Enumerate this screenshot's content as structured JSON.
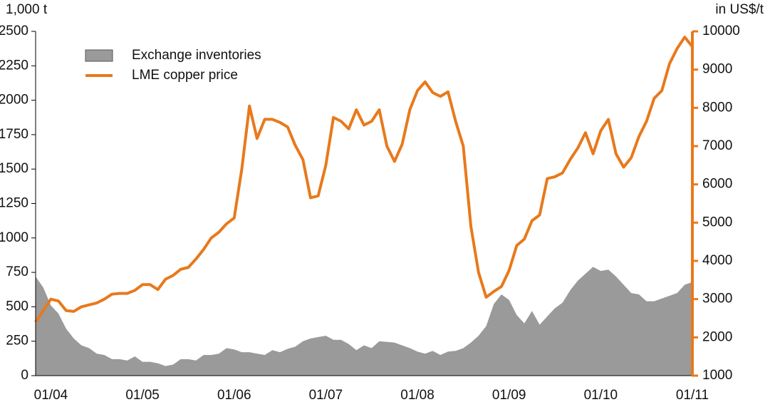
{
  "chart_data": {
    "type": "combo",
    "y_label": "1,000 t",
    "y2_label": "in US$/t",
    "categories": [
      null,
      null,
      "01/04",
      null,
      null,
      null,
      null,
      null,
      null,
      null,
      null,
      null,
      null,
      null,
      "01/05",
      null,
      null,
      null,
      null,
      null,
      null,
      null,
      null,
      null,
      null,
      null,
      "01/06",
      null,
      null,
      null,
      null,
      null,
      null,
      null,
      null,
      null,
      null,
      null,
      "01/07",
      null,
      null,
      null,
      null,
      null,
      null,
      null,
      null,
      null,
      null,
      null,
      "01/08",
      null,
      null,
      null,
      null,
      null,
      null,
      null,
      null,
      null,
      null,
      null,
      "01/09",
      null,
      null,
      null,
      null,
      null,
      null,
      null,
      null,
      null,
      null,
      null,
      "01/10",
      null,
      null,
      null,
      null,
      null,
      null,
      null,
      null,
      null,
      null,
      null,
      "01/11"
    ],
    "series": [
      {
        "name": "Exchange inventories",
        "type": "area",
        "color": "#9a9a9a",
        "values": [
          720,
          640,
          510,
          450,
          340,
          270,
          220,
          200,
          160,
          150,
          120,
          120,
          110,
          140,
          100,
          100,
          90,
          70,
          80,
          120,
          120,
          110,
          150,
          150,
          160,
          200,
          190,
          170,
          170,
          160,
          150,
          185,
          170,
          195,
          210,
          250,
          270,
          280,
          290,
          260,
          260,
          230,
          185,
          220,
          200,
          250,
          245,
          240,
          220,
          200,
          175,
          160,
          180,
          150,
          175,
          180,
          200,
          240,
          290,
          360,
          520,
          590,
          550,
          440,
          380,
          470,
          370,
          430,
          490,
          530,
          620,
          690,
          740,
          790,
          760,
          770,
          720,
          660,
          600,
          590,
          540,
          540,
          560,
          580,
          600,
          660,
          680
        ]
      },
      {
        "name": "LME copper price",
        "type": "line",
        "axis": "y2",
        "color": "#e8791c",
        "values": [
          2400,
          2700,
          3000,
          2950,
          2700,
          2680,
          2800,
          2850,
          2900,
          3000,
          3130,
          3150,
          3150,
          3230,
          3380,
          3380,
          3250,
          3520,
          3620,
          3780,
          3830,
          4050,
          4300,
          4600,
          4750,
          4970,
          5120,
          6400,
          8050,
          7200,
          7700,
          7700,
          7620,
          7500,
          7020,
          6650,
          5650,
          5700,
          6500,
          7750,
          7650,
          7450,
          7950,
          7550,
          7650,
          7950,
          7000,
          6600,
          7050,
          7950,
          8450,
          8680,
          8400,
          8300,
          8420,
          7650,
          7000,
          4900,
          3700,
          3050,
          3200,
          3330,
          3750,
          4400,
          4570,
          5050,
          5200,
          6150,
          6200,
          6300,
          6650,
          6950,
          7350,
          6800,
          7400,
          7700,
          6800,
          6450,
          6700,
          7250,
          7650,
          8250,
          8450,
          9150,
          9550,
          9850,
          9600
        ]
      }
    ],
    "ylim": [
      0,
      2500
    ],
    "yticks": [
      0,
      250,
      500,
      750,
      1000,
      1250,
      1500,
      1750,
      2000,
      2250,
      2500
    ],
    "y2lim": [
      1000,
      10000
    ],
    "y2ticks": [
      1000,
      2000,
      3000,
      4000,
      5000,
      6000,
      7000,
      8000,
      9000,
      10000
    ],
    "y2_color": "#e8791c"
  }
}
